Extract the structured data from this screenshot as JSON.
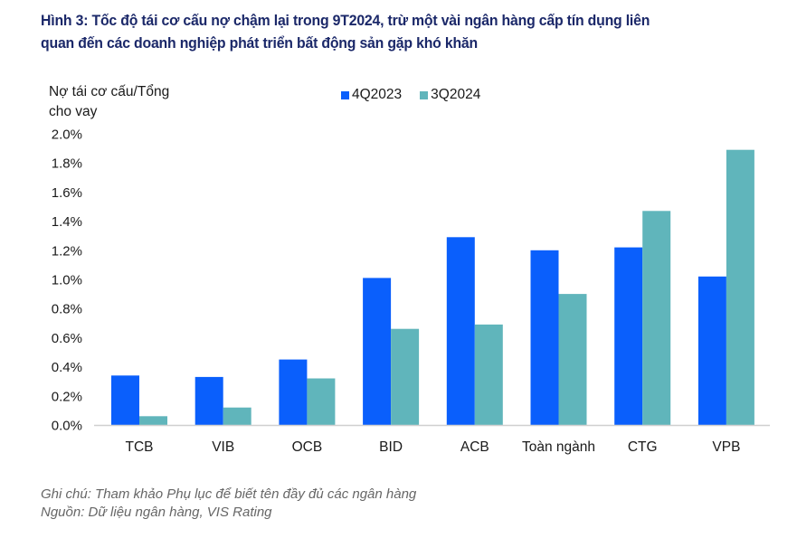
{
  "title": {
    "line1": "Hình 3: Tốc độ tái cơ cấu nợ chậm lại trong 9T2024, trừ một vài ngân hàng cấp tín dụng liên",
    "line2": "quan đến các doanh nghiệp phát triển bất động sản gặp khó khăn"
  },
  "footnote": {
    "note": "Ghi chú: Tham khảo Phụ lục để biết tên đầy đủ các ngân hàng",
    "source": "Nguồn: Dữ liệu ngân hàng, VIS Rating"
  },
  "colors": {
    "series_4Q2023": "#0a5ffc",
    "series_3Q2024": "#60b5bb",
    "title": "#1b2869",
    "axis": "#d0d0d0"
  },
  "chart_data": {
    "type": "bar",
    "title": "Hình 3: Tốc độ tái cơ cấu nợ chậm lại trong 9T2024, trừ một vài ngân hàng cấp tín dụng liên quan đến các doanh nghiệp phát triển bất động sản gặp khó khăn",
    "ylabel_line1": "Nợ tái cơ cấu/Tổng",
    "ylabel_line2": "cho vay",
    "xlabel": "",
    "categories": [
      "TCB",
      "VIB",
      "OCB",
      "BID",
      "ACB",
      "Toàn ngành",
      "CTG",
      "VPB"
    ],
    "series": [
      {
        "name": "4Q2023",
        "values": [
          0.34,
          0.33,
          0.45,
          1.01,
          1.29,
          1.2,
          1.22,
          1.02
        ]
      },
      {
        "name": "3Q2024",
        "values": [
          0.06,
          0.12,
          0.32,
          0.66,
          0.69,
          0.9,
          1.47,
          1.89
        ]
      }
    ],
    "unit": "%",
    "ylim": [
      0,
      2.0
    ],
    "yticks": [
      0.0,
      0.2,
      0.4,
      0.6,
      0.8,
      1.0,
      1.2,
      1.4,
      1.6,
      1.8,
      2.0
    ],
    "ytick_labels": [
      "0.0%",
      "0.2%",
      "0.4%",
      "0.6%",
      "0.8%",
      "1.0%",
      "1.2%",
      "1.4%",
      "1.6%",
      "1.8%",
      "2.0%"
    ],
    "grid": false,
    "legend_position": "top-center"
  }
}
